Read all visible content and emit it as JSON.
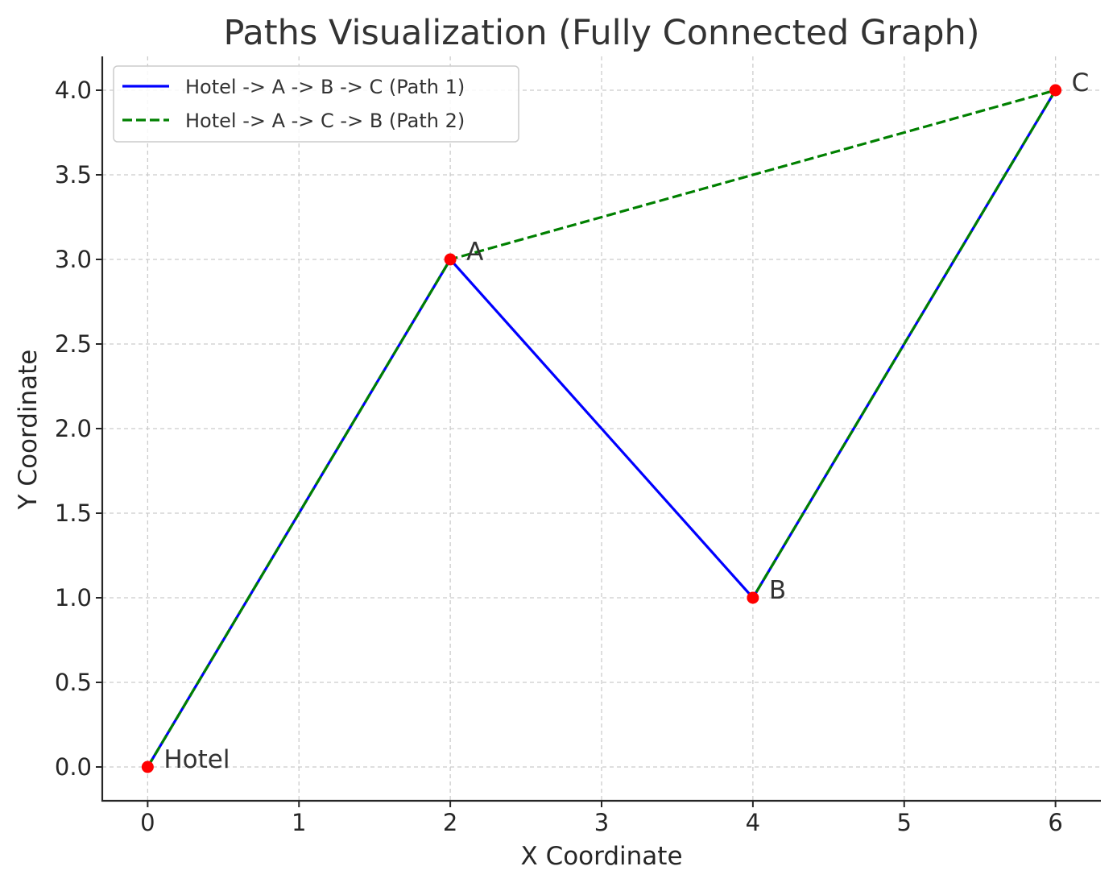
{
  "chart_data": {
    "type": "line",
    "title": "Paths Visualization (Fully Connected Graph)",
    "xlabel": "X Coordinate",
    "ylabel": "Y Coordinate",
    "xlim": [
      -0.3,
      6.3
    ],
    "ylim": [
      -0.2,
      4.2
    ],
    "xticks": [
      0,
      1,
      2,
      3,
      4,
      5,
      6
    ],
    "xtick_labels": [
      "0",
      "1",
      "2",
      "3",
      "4",
      "5",
      "6"
    ],
    "yticks": [
      0.0,
      0.5,
      1.0,
      1.5,
      2.0,
      2.5,
      3.0,
      3.5,
      4.0
    ],
    "ytick_labels": [
      "0.0",
      "0.5",
      "1.0",
      "1.5",
      "2.0",
      "2.5",
      "3.0",
      "3.5",
      "4.0"
    ],
    "grid": true,
    "legend_position": "top-left",
    "points": [
      {
        "name": "Hotel",
        "x": 0,
        "y": 0
      },
      {
        "name": "A",
        "x": 2,
        "y": 3
      },
      {
        "name": "B",
        "x": 4,
        "y": 1
      },
      {
        "name": "C",
        "x": 6,
        "y": 4
      }
    ],
    "series": [
      {
        "name": "Hotel -> A -> B -> C (Path 1)",
        "style": "solid",
        "color": "#0000ff",
        "route": [
          "Hotel",
          "A",
          "B",
          "C"
        ],
        "x": [
          0,
          2,
          4,
          6
        ],
        "y": [
          0,
          3,
          1,
          4
        ]
      },
      {
        "name": "Hotel -> A -> C -> B (Path 2)",
        "style": "dashed",
        "color": "#008000",
        "route": [
          "Hotel",
          "A",
          "C",
          "B"
        ],
        "x": [
          0,
          2,
          6,
          4
        ],
        "y": [
          0,
          3,
          4,
          1
        ]
      }
    ],
    "point_color": "#ff0000"
  }
}
